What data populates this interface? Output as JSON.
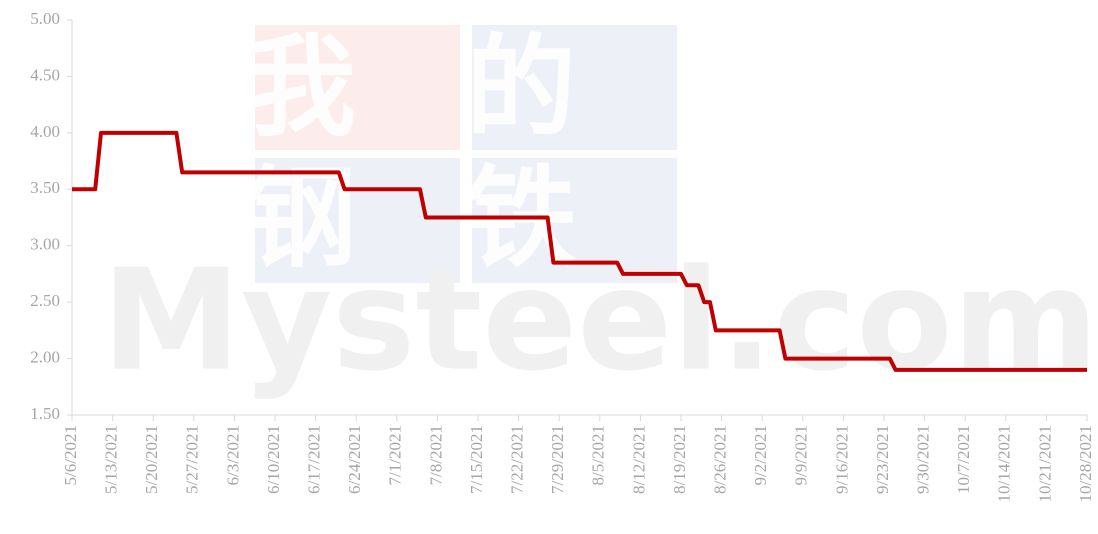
{
  "chart_data": {
    "type": "line",
    "watermark": [
      "我的",
      "钢铁",
      "Mysteel.com"
    ],
    "x": [
      "5/6/2021",
      "5/10/2021",
      "5/11/2021",
      "5/24/2021",
      "5/25/2021",
      "6/21/2021",
      "6/22/2021",
      "7/5/2021",
      "7/6/2021",
      "7/27/2021",
      "7/28/2021",
      "8/8/2021",
      "8/9/2021",
      "8/19/2021",
      "8/20/2021",
      "8/22/2021",
      "8/23/2021",
      "8/24/2021",
      "8/25/2021",
      "9/5/2021",
      "9/6/2021",
      "9/24/2021",
      "9/25/2021",
      "10/28/2021"
    ],
    "series": [
      {
        "color": "#c00000",
        "values": [
          3.5,
          3.5,
          4,
          4,
          3.65,
          3.65,
          3.5,
          3.5,
          3.25,
          3.25,
          2.85,
          2.85,
          2.75,
          2.75,
          2.65,
          2.65,
          2.5,
          2.5,
          2.25,
          2.25,
          2,
          2,
          1.9,
          1.9
        ]
      }
    ],
    "xlim": [
      "5/6/2021",
      "10/28/2021"
    ],
    "xticks": [
      "5/6/2021",
      "5/13/2021",
      "5/20/2021",
      "5/27/2021",
      "6/3/2021",
      "6/10/2021",
      "6/17/2021",
      "6/24/2021",
      "7/1/2021",
      "7/8/2021",
      "7/15/2021",
      "7/22/2021",
      "7/29/2021",
      "8/5/2021",
      "8/12/2021",
      "8/19/2021",
      "8/26/2021",
      "9/2/2021",
      "9/9/2021",
      "9/16/2021",
      "9/23/2021",
      "9/30/2021",
      "10/7/2021",
      "10/14/2021",
      "10/21/2021",
      "10/28/2021"
    ],
    "ylim": [
      1.5,
      5
    ],
    "yticks": [
      {
        "value": 1.5,
        "label": "1.50"
      },
      {
        "value": 2,
        "label": "2.00"
      },
      {
        "value": 2.5,
        "label": "2.50"
      },
      {
        "value": 3,
        "label": "3.00"
      },
      {
        "value": 3.5,
        "label": "3.50"
      },
      {
        "value": 4,
        "label": "4.00"
      },
      {
        "value": 4.5,
        "label": "4.50"
      },
      {
        "value": 5,
        "label": "5.00"
      }
    ]
  }
}
